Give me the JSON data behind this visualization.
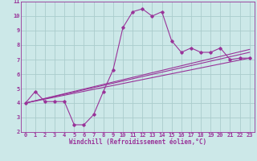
{
  "xlabel": "Windchill (Refroidissement éolien,°C)",
  "bg_color": "#cce8e8",
  "grid_color": "#aacccc",
  "line_color": "#993399",
  "xlim": [
    -0.5,
    23.5
  ],
  "ylim": [
    2,
    11
  ],
  "xticks": [
    0,
    1,
    2,
    3,
    4,
    5,
    6,
    7,
    8,
    9,
    10,
    11,
    12,
    13,
    14,
    15,
    16,
    17,
    18,
    19,
    20,
    21,
    22,
    23
  ],
  "yticks": [
    2,
    3,
    4,
    5,
    6,
    7,
    8,
    9,
    10,
    11
  ],
  "curve1_x": [
    0,
    1,
    2,
    3,
    4,
    5,
    6,
    7,
    8,
    9,
    10,
    11,
    12,
    13,
    14,
    15,
    16,
    17,
    18,
    19,
    20,
    21,
    22,
    23
  ],
  "curve1_y": [
    4.0,
    4.8,
    4.1,
    4.1,
    4.1,
    2.5,
    2.5,
    3.2,
    4.8,
    6.3,
    9.2,
    10.3,
    10.5,
    10.0,
    10.3,
    8.3,
    7.5,
    7.8,
    7.5,
    7.5,
    7.8,
    7.0,
    7.1,
    7.1
  ],
  "curve2_x": [
    0,
    23
  ],
  "curve2_y": [
    4.0,
    7.1
  ],
  "curve3_x": [
    0,
    23
  ],
  "curve3_y": [
    4.0,
    7.5
  ],
  "curve4_x": [
    0,
    23
  ],
  "curve4_y": [
    4.0,
    7.7
  ],
  "label_fontsize": 5.0,
  "xlabel_fontsize": 5.5
}
